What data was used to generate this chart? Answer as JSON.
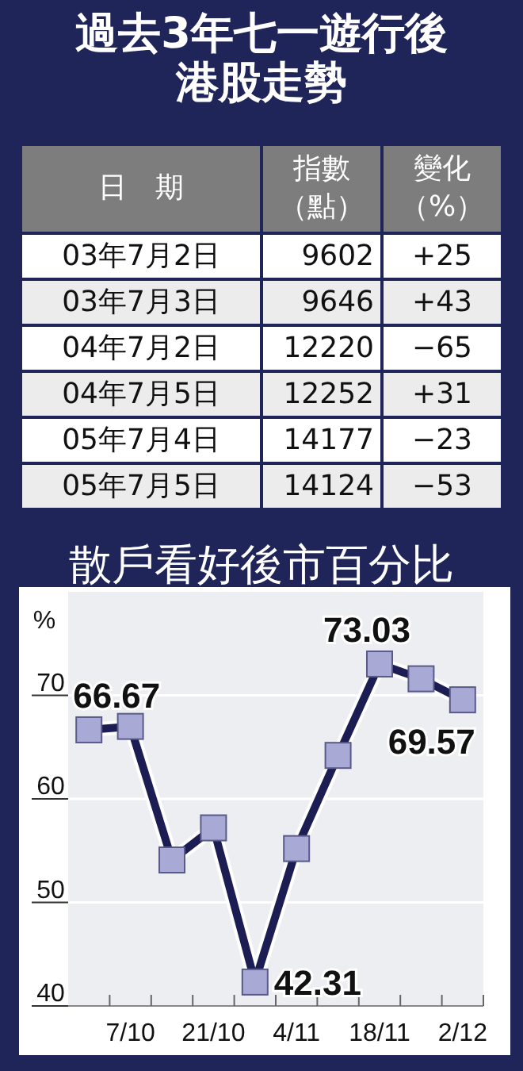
{
  "chart_data": [
    {
      "type": "other",
      "title": "過去3年七一遊行後港股走勢",
      "annotations": [
        "日　期",
        "指數（點）",
        "變化（%）",
        "03年7月2日",
        "9602",
        "+25",
        "03年7月3日",
        "9646",
        "+43",
        "04年7月2日",
        "12220",
        "−65",
        "04年7月5日",
        "12252",
        "+31",
        "05年7月4日",
        "14177",
        "−23",
        "05年7月5日",
        "14124",
        "−53"
      ]
    },
    {
      "type": "line",
      "title": "散戶看好後市百分比",
      "ylabel": "%",
      "categories": [
        null,
        "7/10",
        null,
        "21/10",
        null,
        "4/11",
        null,
        "18/11",
        null,
        "2/12"
      ],
      "series": [
        {
          "color": "#1c1d52",
          "values": [
            66.67,
            67.0,
            54.1,
            57.2,
            42.31,
            55.2,
            64.2,
            73.03,
            71.6,
            69.57
          ],
          "value_labels": [
            "66.67",
            null,
            null,
            null,
            "42.31",
            null,
            null,
            "73.03",
            null,
            "69.57"
          ]
        }
      ],
      "ylim": [
        40,
        80
      ],
      "yticks": [
        40,
        50,
        60,
        70
      ],
      "grid": "y",
      "marker": "square",
      "line_style": "solid"
    }
  ]
}
